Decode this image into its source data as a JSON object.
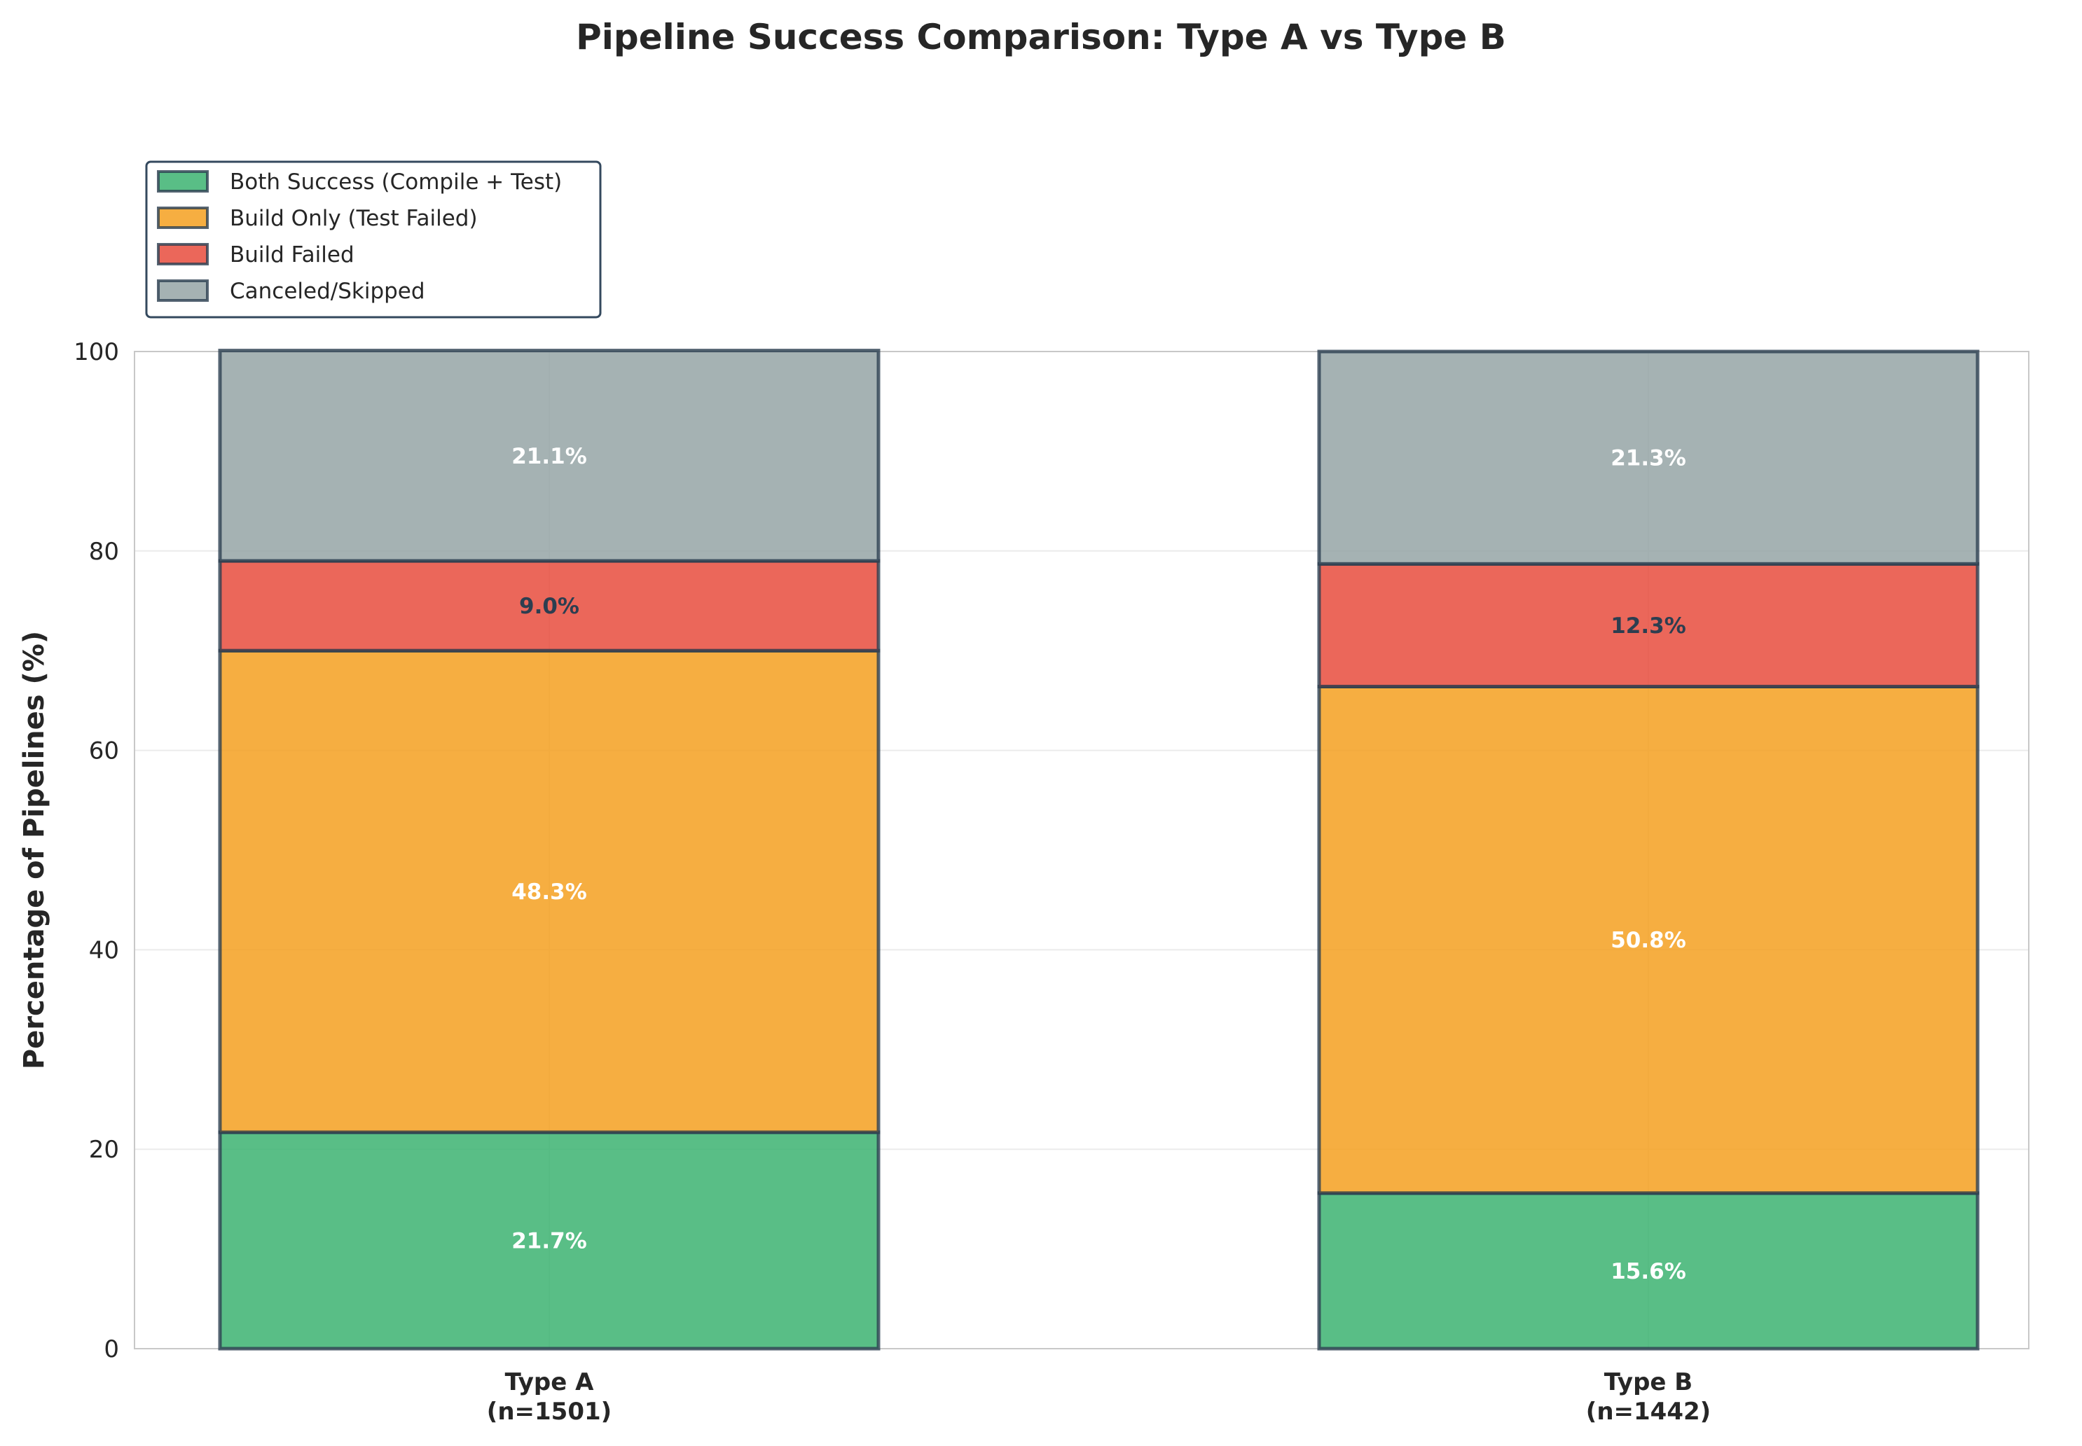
{
  "chart_data": {
    "type": "bar",
    "stacked": true,
    "title": "Pipeline Success Comparison: Type A vs Type B",
    "xlabel": "",
    "ylabel": "Percentage of Pipelines (%)",
    "ylim": [
      0,
      100
    ],
    "yticks": [
      "0",
      "20",
      "40",
      "60",
      "80",
      "100"
    ],
    "grid": true,
    "legend_position": "top-left",
    "categories": [
      "Type A\n(n=1501)",
      "Type B\n(n=1442)"
    ],
    "series": [
      {
        "name": "Both Success (Compile + Test)",
        "values": [
          21.7,
          15.6
        ],
        "labels": [
          "21.7%",
          "15.6%"
        ],
        "color": "#3cb371",
        "label_color": "#ffffff"
      },
      {
        "name": "Build Only (Test Failed)",
        "values": [
          48.3,
          50.8
        ],
        "labels": [
          "48.3%",
          "50.8%"
        ],
        "color": "#f4a020",
        "label_color": "#ffffff"
      },
      {
        "name": "Build Failed",
        "values": [
          9.0,
          12.3
        ],
        "labels": [
          "9.0%",
          "12.3%"
        ],
        "color": "#e84c3d",
        "label_color": "#2c3e50"
      },
      {
        "name": "Canceled/Skipped",
        "values": [
          21.1,
          21.3
        ],
        "labels": [
          "21.1%",
          "21.3%"
        ],
        "color": "#95a5a6",
        "label_color": "#ffffff"
      }
    ]
  }
}
